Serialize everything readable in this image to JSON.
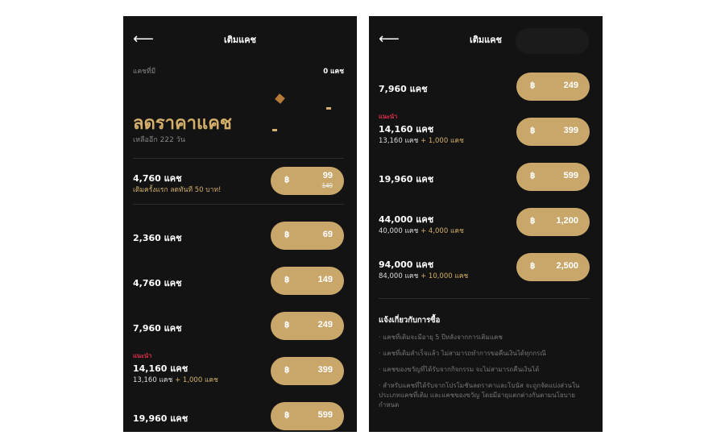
{
  "header": {
    "title": "เติมแคช",
    "back_icon": "arrow-left-icon"
  },
  "balance": {
    "label": "แคชที่มี",
    "value": "0 แคช"
  },
  "promo": {
    "title": "ลดราคาแคช",
    "remaining": "เหลืออีก 222 วัน",
    "item": {
      "amount": "4,760 แคช",
      "note": "เติมครั้งแรก ลดทันที 50 บาท!",
      "price": "99",
      "old_price": "149"
    }
  },
  "currency_symbol": "฿",
  "left_items": [
    {
      "amount": "2,360 แคช",
      "price": "69"
    },
    {
      "amount": "4,760 แคช",
      "price": "149"
    },
    {
      "amount": "7,960 แคช",
      "price": "249"
    },
    {
      "badge": "แนะนำ",
      "amount": "14,160 แคช",
      "base": "13,160 แคช",
      "bonus": "+ 1,000 แคช",
      "price": "399"
    },
    {
      "amount": "19,960 แคช",
      "price": "599"
    }
  ],
  "right_items": [
    {
      "amount": "7,960 แคช",
      "price": "249"
    },
    {
      "badge": "แนะนำ",
      "amount": "14,160 แคช",
      "base": "13,160 แคช",
      "bonus": "+ 1,000 แคช",
      "price": "399"
    },
    {
      "amount": "19,960 แคช",
      "price": "599"
    },
    {
      "amount": "44,000 แคช",
      "base": "40,000 แคช",
      "bonus": "+ 4,000 แคช",
      "price": "1,200"
    },
    {
      "amount": "94,000 แคช",
      "base": "84,000 แคช",
      "bonus": "+ 10,000 แคช",
      "price": "2,500"
    }
  ],
  "notice": {
    "title": "แจ้งเกี่ยวกับการซื้อ",
    "items": [
      "แคชที่เติมจะมีอายุ 5 ปีหลังจากการเติมแคช",
      "แคชที่เติมสำเร็จแล้ว ไม่สามารถทำการขอคืนเงินได้ทุกกรณี",
      "แคชของขวัญที่ได้รับจากกิจกรรม จะไม่สามารถคืนเงินได้",
      "สำหรับแคชที่ได้รับจากโปรโมชันลดราคาและโบนัส จะถูกจัดแบ่งส่วนในประเภทแคชที่เติม และแคชของขวัญ โดยมีอายุแตกต่างกันตามนโยบายกำหนด"
    ]
  },
  "colors": {
    "background": "#131313",
    "accent": "#c9a76b",
    "recommend": "#e0304a"
  }
}
